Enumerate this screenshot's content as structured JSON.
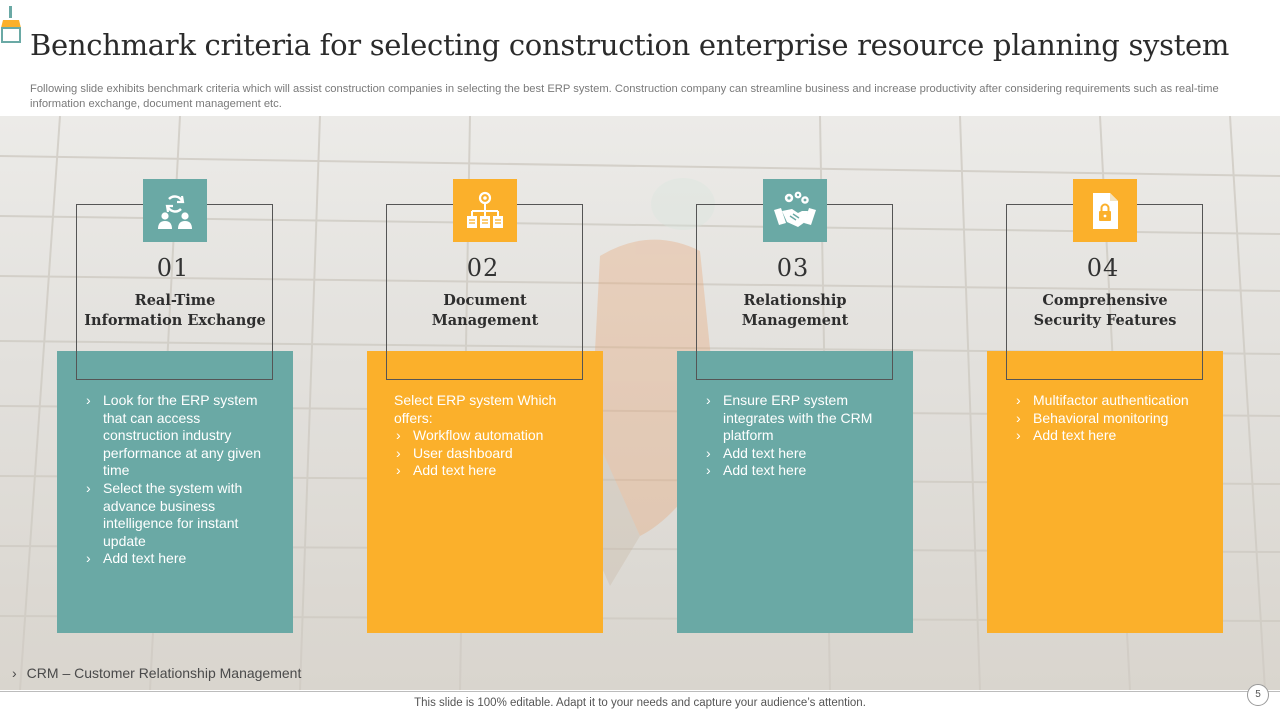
{
  "header": {
    "title": "Benchmark criteria for selecting construction enterprise resource planning system",
    "subtitle": "Following slide exhibits benchmark criteria which will assist construction companies in selecting the best ERP system. Construction company can streamline business and increase productivity after considering requirements such as real-time information exchange, document management etc."
  },
  "criteria": [
    {
      "number": "01",
      "heading_line1": "Real-Time",
      "heading_line2": "Information Exchange",
      "icon": "sync-users-icon",
      "bullets": [
        "Look for the ERP system that can access construction industry performance at any given time",
        "Select the system with advance business intelligence for instant update",
        "Add text here"
      ]
    },
    {
      "number": "02",
      "heading_line1": "Document",
      "heading_line2": "Management",
      "icon": "document-network-icon",
      "intro": "Select ERP system Which offers:",
      "bullets": [
        "Workflow automation",
        "User dashboard",
        "Add text here"
      ]
    },
    {
      "number": "03",
      "heading_line1": "Relationship",
      "heading_line2": "Management",
      "icon": "handshake-gears-icon",
      "bullets": [
        "Ensure ERP system integrates with the CRM platform",
        "Add text here",
        "Add text here"
      ]
    },
    {
      "number": "04",
      "heading_line1": "Comprehensive",
      "heading_line2": "Security Features",
      "icon": "secure-file-icon",
      "bullets": [
        "Multifactor authentication",
        "Behavioral monitoring",
        "Add text here"
      ]
    }
  ],
  "footnote": "CRM – Customer Relationship Management",
  "footer": "This slide is 100% editable. Adapt it to your needs and capture your audience’s attention.",
  "page_number": "5",
  "colors": {
    "teal": "#6aa9a5",
    "orange": "#fbb02b"
  }
}
